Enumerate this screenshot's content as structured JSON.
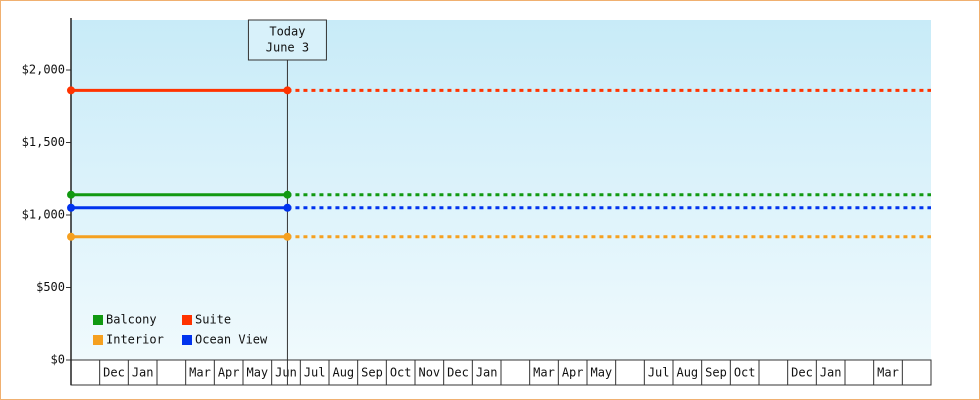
{
  "chart_data": {
    "type": "line",
    "categories": [
      null,
      "Dec",
      "Jan",
      null,
      "Mar",
      "Apr",
      "May",
      "Jun",
      "Jul",
      "Aug",
      "Sep",
      "Oct",
      "Nov",
      "Dec",
      "Jan",
      null,
      "Mar",
      "Apr",
      "May",
      null,
      "Jul",
      "Aug",
      "Sep",
      "Oct",
      null,
      "Dec",
      "Jan",
      null,
      "Mar",
      null
    ],
    "today": [
      "Today",
      "June 3"
    ],
    "series": [
      {
        "name": "Balcony",
        "color": "#119911",
        "value": 1140
      },
      {
        "name": "Suite",
        "color": "#ff3300",
        "value": 1860
      },
      {
        "name": "Interior",
        "color": "#f5a020",
        "value": 850
      },
      {
        "name": "Ocean View",
        "color": "#0033ee",
        "value": 1050
      }
    ],
    "ylim": [
      0,
      2345
    ],
    "yticks": [
      {
        "value": 0,
        "label": "$0"
      },
      {
        "value": 500,
        "label": "$500"
      },
      {
        "value": 1000,
        "label": "$1,000"
      },
      {
        "value": 1500,
        "label": "$1,500"
      },
      {
        "value": 2000,
        "label": "$2,000"
      }
    ],
    "legend": "bottom-left"
  }
}
